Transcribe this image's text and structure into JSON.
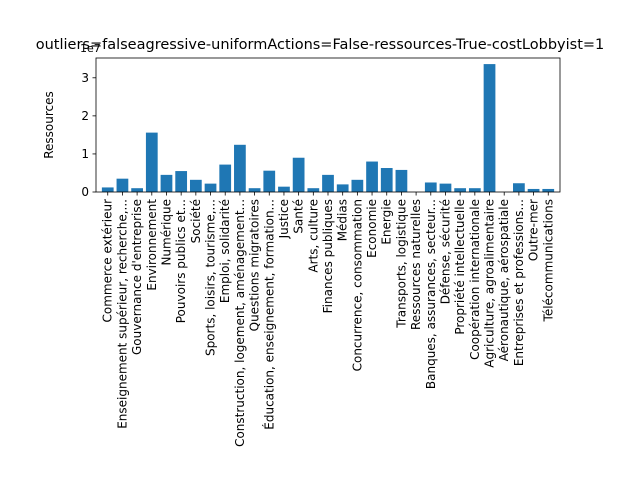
{
  "chart_data": {
    "type": "bar",
    "title": "outliers=falseagressive-uniformActions=False-ressources-True-costLobbyist=1",
    "ylabel": "Ressources",
    "xlabel": "",
    "y_offset_label": "1e7",
    "ylim": [
      0,
      3.52
    ],
    "yticks": [
      0,
      1,
      2,
      3
    ],
    "bar_color": "#1f77b4",
    "grid": false,
    "categories": [
      "Commerce extérieur",
      "Enseignement supérieur, recherche,...",
      "Gouvernance d'entreprise",
      "Environnement",
      "Numérique",
      "Pouvoirs publics et...",
      "Société",
      "Sports, loisirs, tourisme,...",
      "Emploi, solidarité",
      "Construction, logement, aménagement...",
      "Questions migratoires",
      "Éducation, enseignement, formation...",
      "Justice",
      "Santé",
      "Arts, culture",
      "Finances publiques",
      "Médias",
      "Concurrence, consommation",
      "Economie",
      "Energie",
      "Transports, logistique",
      "Ressources naturelles",
      "Banques, assurances, secteur...",
      "Défense, sécurité",
      "Propriété intellectuelle",
      "Coopération internationale",
      "Agriculture, agroalimentaire",
      "Aéronautique, aérospatiale",
      "Entreprises et professions...",
      "Outre-mer",
      "Télécommunications"
    ],
    "values": [
      0.12,
      0.35,
      0.1,
      1.56,
      0.45,
      0.55,
      0.32,
      0.22,
      0.72,
      1.24,
      0.1,
      0.56,
      0.14,
      0.9,
      0.1,
      0.45,
      0.2,
      0.32,
      0.8,
      0.63,
      0.58,
      0.0,
      0.25,
      0.22,
      0.1,
      0.1,
      3.36,
      0.0,
      0.23,
      0.08,
      0.08
    ]
  }
}
